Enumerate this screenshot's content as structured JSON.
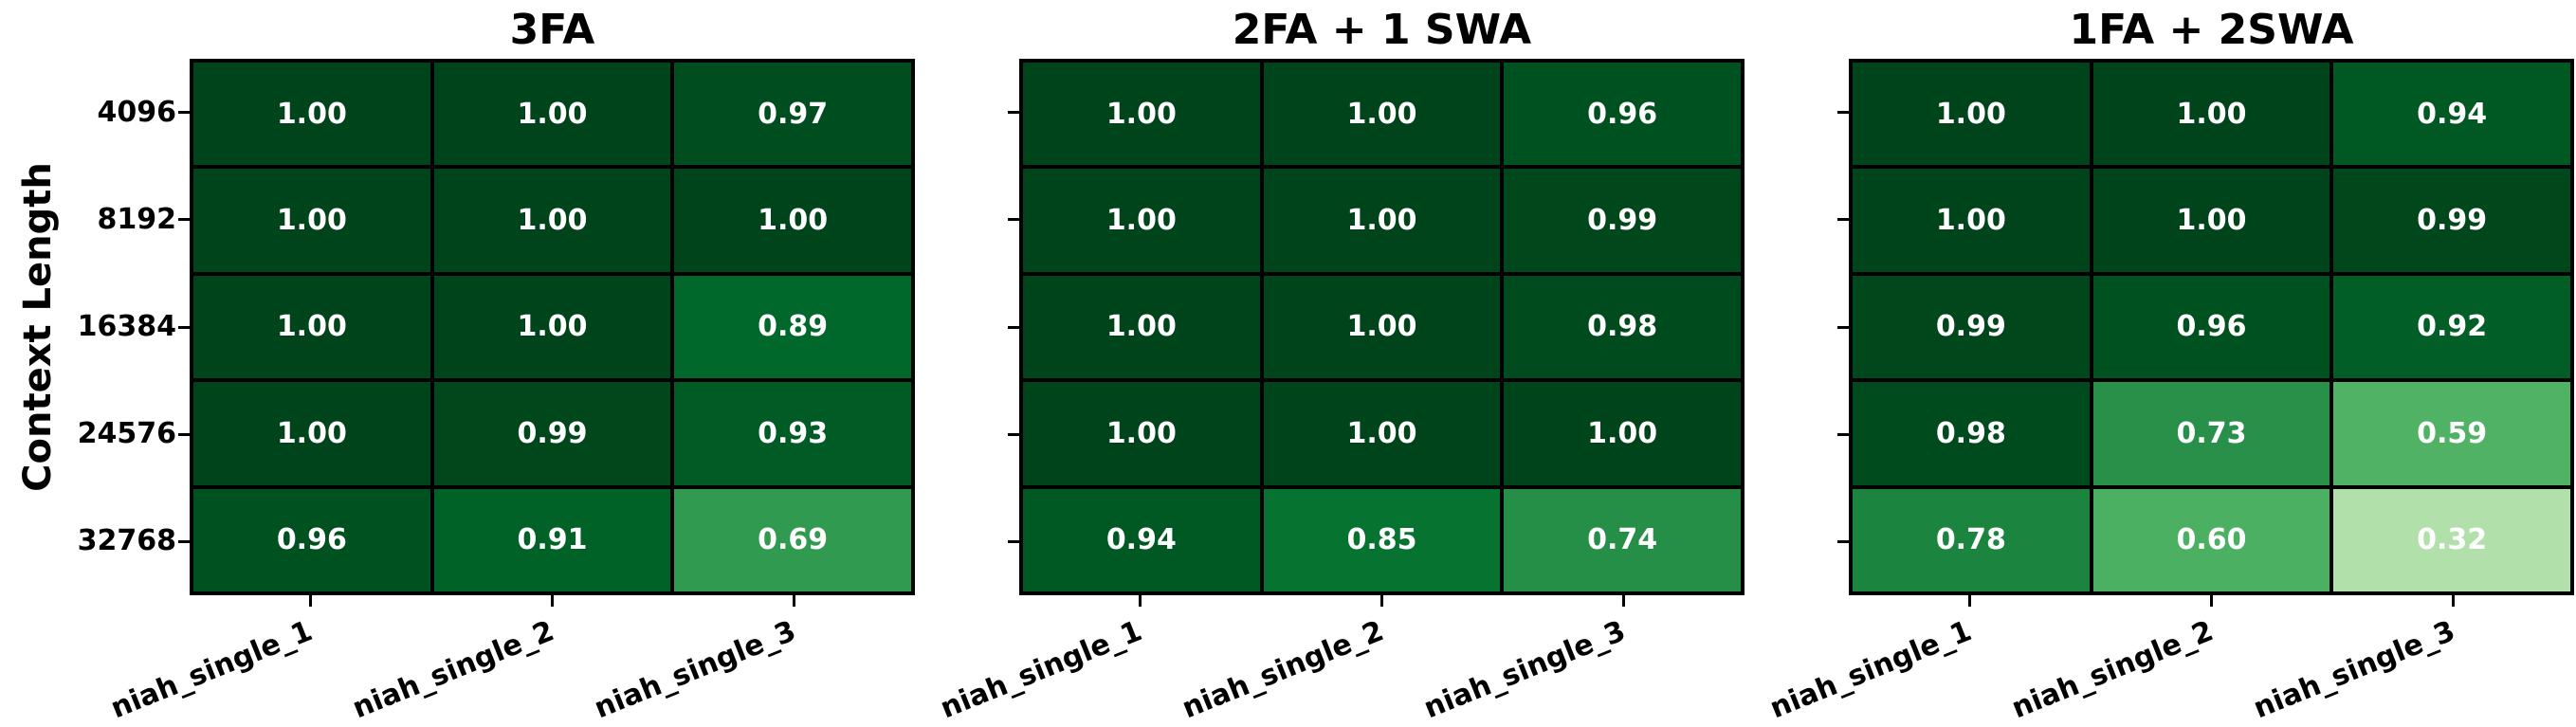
{
  "figure": {
    "ylabel": "Context Length"
  },
  "style": {
    "cell_text_color": "#ffffff",
    "grid_line_color": "#000000",
    "colormap_name": "Greens",
    "colormap_stops": [
      [
        0.0,
        [
          247,
          252,
          245
        ]
      ],
      [
        0.125,
        [
          229,
          245,
          224
        ]
      ],
      [
        0.25,
        [
          199,
          233,
          192
        ]
      ],
      [
        0.375,
        [
          161,
          217,
          155
        ]
      ],
      [
        0.5,
        [
          116,
          196,
          118
        ]
      ],
      [
        0.625,
        [
          65,
          171,
          93
        ]
      ],
      [
        0.75,
        [
          35,
          139,
          69
        ]
      ],
      [
        0.875,
        [
          0,
          109,
          44
        ]
      ],
      [
        1.0,
        [
          0,
          68,
          27
        ]
      ]
    ]
  },
  "chart_data": [
    {
      "type": "heatmap",
      "title": "3FA",
      "rows": [
        "4096",
        "8192",
        "16384",
        "24576",
        "32768"
      ],
      "cols": [
        "niah_single_1",
        "niah_single_2",
        "niah_single_3"
      ],
      "values": [
        [
          1.0,
          1.0,
          0.97
        ],
        [
          1.0,
          1.0,
          1.0
        ],
        [
          1.0,
          1.0,
          0.89
        ],
        [
          1.0,
          0.99,
          0.93
        ],
        [
          0.96,
          0.91,
          0.69
        ]
      ],
      "vmin": 0,
      "vmax": 1,
      "value_format": ".2f",
      "show_row_labels": true
    },
    {
      "type": "heatmap",
      "title": "2FA + 1 SWA",
      "rows": [
        "4096",
        "8192",
        "16384",
        "24576",
        "32768"
      ],
      "cols": [
        "niah_single_1",
        "niah_single_2",
        "niah_single_3"
      ],
      "values": [
        [
          1.0,
          1.0,
          0.96
        ],
        [
          1.0,
          1.0,
          0.99
        ],
        [
          1.0,
          1.0,
          0.98
        ],
        [
          1.0,
          1.0,
          1.0
        ],
        [
          0.94,
          0.85,
          0.74
        ]
      ],
      "vmin": 0,
      "vmax": 1,
      "value_format": ".2f",
      "show_row_labels": false
    },
    {
      "type": "heatmap",
      "title": "1FA + 2SWA",
      "rows": [
        "4096",
        "8192",
        "16384",
        "24576",
        "32768"
      ],
      "cols": [
        "niah_single_1",
        "niah_single_2",
        "niah_single_3"
      ],
      "values": [
        [
          1.0,
          1.0,
          0.94
        ],
        [
          1.0,
          1.0,
          0.99
        ],
        [
          0.99,
          0.96,
          0.92
        ],
        [
          0.98,
          0.73,
          0.59
        ],
        [
          0.78,
          0.6,
          0.32
        ]
      ],
      "vmin": 0,
      "vmax": 1,
      "value_format": ".2f",
      "show_row_labels": false
    }
  ]
}
